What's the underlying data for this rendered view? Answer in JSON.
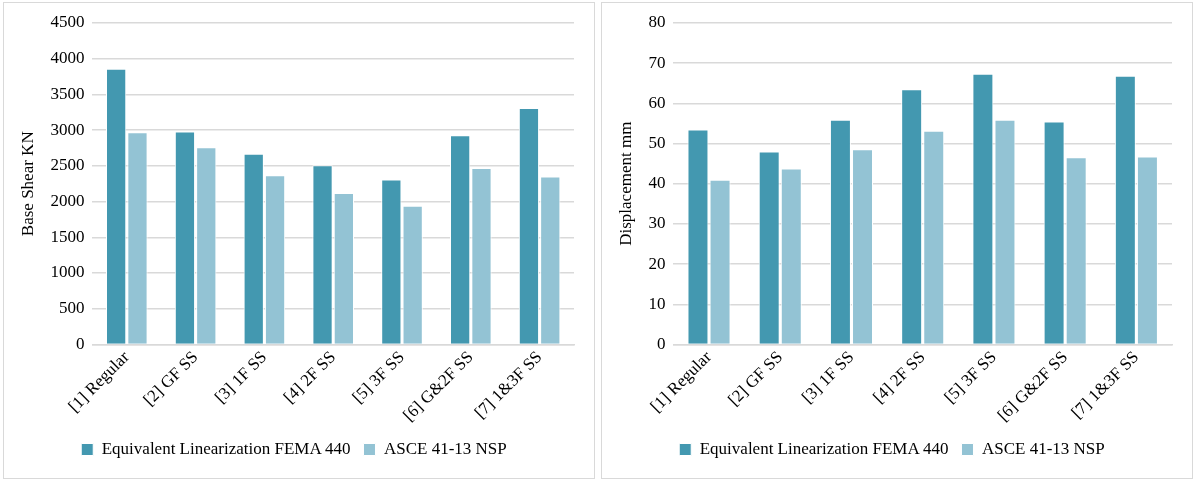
{
  "chart_data": [
    {
      "type": "bar",
      "ylabel": "Base Shear KN",
      "categories": [
        "[1] Regular",
        "[2] GF SS",
        "[3] 1F SS",
        "[4] 2F SS",
        "[5] 3F SS",
        "[6] G&2F SS",
        "[7] 1&3F SS"
      ],
      "series": [
        {
          "name": "Equivalent Linearization FEMA 440",
          "color": "#4398b0",
          "values": [
            3860,
            2980,
            2670,
            2510,
            2310,
            2930,
            3310
          ]
        },
        {
          "name": "ASCE 41-13 NSP",
          "color": "#93c3d4",
          "values": [
            2970,
            2760,
            2370,
            2120,
            1940,
            2470,
            2350
          ]
        }
      ],
      "ylim": [
        0,
        4500
      ],
      "yticks": [
        0,
        500,
        1000,
        1500,
        2000,
        2500,
        3000,
        3500,
        4000,
        4500
      ],
      "grid": "y",
      "legend": "bottom"
    },
    {
      "type": "bar",
      "ylabel": "Displacement mm",
      "categories": [
        "[1] Regular",
        "[2] GF SS",
        "[3] 1F SS",
        "[4] 2F SS",
        "[5] 3F SS",
        "[6] G&2F SS",
        "[7] 1&3F SS"
      ],
      "series": [
        {
          "name": "Equivalent Linearization FEMA 440",
          "color": "#4398b0",
          "values": [
            53.5,
            48.0,
            55.9,
            63.5,
            67.4,
            55.5,
            66.9
          ]
        },
        {
          "name": "ASCE 41-13 NSP",
          "color": "#93c3d4",
          "values": [
            41.0,
            43.8,
            48.6,
            53.2,
            55.9,
            46.6,
            46.8
          ]
        }
      ],
      "ylim": [
        0,
        80
      ],
      "yticks": [
        0,
        10,
        20,
        30,
        40,
        50,
        60,
        70,
        80
      ],
      "grid": "y",
      "legend": "bottom"
    }
  ]
}
